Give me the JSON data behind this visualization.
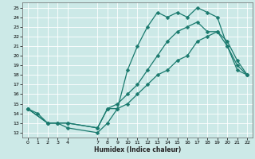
{
  "xlabel": "Humidex (Indice chaleur)",
  "bg_color": "#cce9e7",
  "grid_color": "#ffffff",
  "line_color": "#1a7a6e",
  "markersize": 2.5,
  "linewidth": 0.9,
  "xlim": [
    -0.5,
    22.5
  ],
  "ylim": [
    11.5,
    25.5
  ],
  "xtick_vals": [
    0,
    1,
    2,
    3,
    4,
    7,
    8,
    9,
    10,
    11,
    12,
    13,
    14,
    15,
    16,
    17,
    18,
    19,
    20,
    21,
    22
  ],
  "xtick_labels": [
    "0",
    "1",
    "2",
    "3",
    "4",
    "7",
    "8",
    "9",
    "10",
    "11",
    "12",
    "13",
    "14",
    "15",
    "16",
    "17",
    "18",
    "19",
    "20",
    "21",
    "22"
  ],
  "ytick_vals": [
    12,
    13,
    14,
    15,
    16,
    17,
    18,
    19,
    20,
    21,
    22,
    23,
    24,
    25
  ],
  "ytick_labels": [
    "12",
    "13",
    "14",
    "15",
    "16",
    "17",
    "18",
    "19",
    "20",
    "21",
    "22",
    "23",
    "24",
    "25"
  ],
  "line1_x": [
    0,
    1,
    2,
    3,
    4,
    7,
    8,
    9,
    10,
    11,
    12,
    13,
    14,
    15,
    16,
    17,
    18,
    19,
    20,
    21,
    22
  ],
  "line1_y": [
    14.5,
    14.0,
    13.0,
    13.0,
    12.5,
    12.0,
    13.0,
    14.5,
    18.5,
    21.0,
    23.0,
    24.5,
    24.0,
    24.5,
    24.0,
    25.0,
    24.5,
    24.0,
    21.0,
    19.0,
    18.0
  ],
  "line2_x": [
    0,
    2,
    3,
    4,
    7,
    8,
    9,
    10,
    11,
    12,
    13,
    14,
    15,
    16,
    17,
    18,
    19,
    20,
    21,
    22
  ],
  "line2_y": [
    14.5,
    13.0,
    13.0,
    13.0,
    12.5,
    14.5,
    15.0,
    16.0,
    17.0,
    18.5,
    20.0,
    21.5,
    22.5,
    23.0,
    23.5,
    22.5,
    22.5,
    21.0,
    18.5,
    18.0
  ],
  "line3_x": [
    0,
    2,
    3,
    4,
    7,
    8,
    9,
    10,
    11,
    12,
    13,
    14,
    15,
    16,
    17,
    18,
    19,
    20,
    21,
    22
  ],
  "line3_y": [
    14.5,
    13.0,
    13.0,
    13.0,
    12.5,
    14.5,
    14.5,
    15.0,
    16.0,
    17.0,
    18.0,
    18.5,
    19.5,
    20.0,
    21.5,
    22.0,
    22.5,
    21.5,
    19.5,
    18.0
  ]
}
